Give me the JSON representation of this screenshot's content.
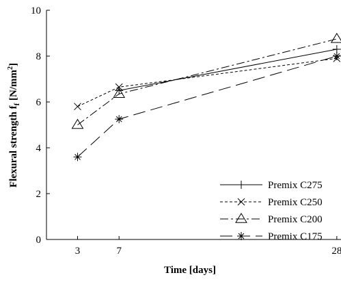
{
  "chart_data": {
    "type": "line",
    "xlabel": "Time [days]",
    "ylabel_main": "Flexural strength f",
    "ylabel_sub": "f",
    "ylabel_unit_open": " [N/mm",
    "ylabel_unit_sup": "2",
    "ylabel_unit_close": "]",
    "x_ticks": [
      3,
      7,
      28
    ],
    "x_tick_labels": [
      "3",
      "7",
      "28"
    ],
    "y_ticks": [
      0,
      2,
      4,
      6,
      8,
      10
    ],
    "y_tick_labels": [
      "0",
      "2",
      "4",
      "6",
      "8",
      "10"
    ],
    "xlim": [
      0,
      28.8
    ],
    "ylim": [
      0,
      10
    ],
    "grid": false,
    "legend_position": "lower-right",
    "x": [
      3,
      7,
      28
    ],
    "series": [
      {
        "name": "Premix C275",
        "values": [
          null,
          6.5,
          8.3
        ],
        "marker": "plus",
        "dash": "solid"
      },
      {
        "name": "Premix C250",
        "values": [
          5.8,
          6.65,
          7.9
        ],
        "marker": "x",
        "dash": "dotted"
      },
      {
        "name": "Premix C200",
        "values": [
          5.0,
          6.35,
          8.75
        ],
        "marker": "triangle",
        "dash": "dashdot"
      },
      {
        "name": "Premix C175",
        "values": [
          3.6,
          5.25,
          8.0
        ],
        "marker": "asterisk",
        "dash": "longdash"
      }
    ]
  }
}
